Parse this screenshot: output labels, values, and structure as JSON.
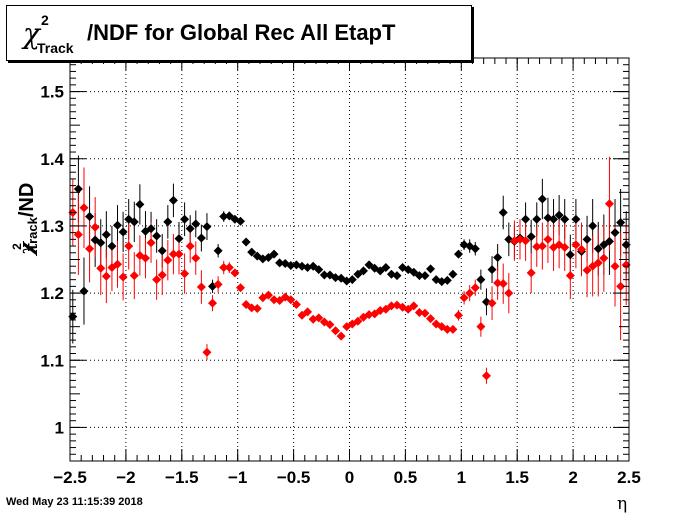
{
  "header": {
    "title_sup": "2",
    "title_sub": "Track",
    "title_main": "/NDF for Global Rec All EtapT",
    "chi_symbol": "χ"
  },
  "axes_text": {
    "ylabel_sup": "2",
    "ylabel_sub": "Track",
    "ylabel_rest": "/ND",
    "xlabel": "η"
  },
  "footer": {
    "timestamp": "Wed May 23 11:15:39 2018"
  },
  "chart_data": {
    "type": "scatter",
    "title": "χ2 Track /NDF for Global Rec All EtapT",
    "xlabel": "η",
    "ylabel": "χ2 Track /ND",
    "xlim": [
      -2.5,
      2.5
    ],
    "ylim": [
      0.95,
      1.55
    ],
    "x_ticks": [
      -2.5,
      -2,
      -1.5,
      -1,
      -0.5,
      0,
      0.5,
      1,
      1.5,
      2,
      2.5
    ],
    "x_tick_labels": [
      "−2.5",
      "−2",
      "−1.5",
      "−1",
      "−0.5",
      "0",
      "0.5",
      "1",
      "1.5",
      "2",
      "2.5"
    ],
    "y_ticks": [
      1,
      1.1,
      1.2,
      1.3,
      1.4,
      1.5
    ],
    "y_tick_labels": [
      "1",
      "1.1",
      "1.2",
      "1.3",
      "1.4",
      "1.5"
    ],
    "grid": true,
    "series": [
      {
        "color": "#000000",
        "x": [
          -2.475,
          -2.425,
          -2.375,
          -2.325,
          -2.275,
          -2.225,
          -2.175,
          -2.125,
          -2.075,
          -2.025,
          -1.975,
          -1.925,
          -1.875,
          -1.825,
          -1.775,
          -1.725,
          -1.675,
          -1.625,
          -1.575,
          -1.525,
          -1.475,
          -1.425,
          -1.375,
          -1.325,
          -1.275,
          -1.225,
          -1.175,
          -1.125,
          -1.075,
          -1.025,
          -0.975,
          -0.925,
          -0.875,
          -0.825,
          -0.775,
          -0.725,
          -0.675,
          -0.625,
          -0.575,
          -0.525,
          -0.475,
          -0.425,
          -0.375,
          -0.325,
          -0.275,
          -0.225,
          -0.175,
          -0.125,
          -0.075,
          -0.025,
          0.025,
          0.075,
          0.125,
          0.175,
          0.225,
          0.275,
          0.325,
          0.375,
          0.425,
          0.475,
          0.525,
          0.575,
          0.625,
          0.675,
          0.725,
          0.775,
          0.825,
          0.875,
          0.925,
          0.975,
          1.025,
          1.075,
          1.125,
          1.175,
          1.225,
          1.275,
          1.325,
          1.375,
          1.425,
          1.475,
          1.525,
          1.575,
          1.625,
          1.675,
          1.725,
          1.775,
          1.825,
          1.875,
          1.925,
          1.975,
          2.025,
          2.075,
          2.125,
          2.175,
          2.225,
          2.275,
          2.325,
          2.375,
          2.425,
          2.475
        ],
        "y": [
          1.165,
          1.355,
          1.203,
          1.314,
          1.279,
          1.275,
          1.287,
          1.27,
          1.301,
          1.291,
          1.31,
          1.306,
          1.332,
          1.292,
          1.296,
          1.285,
          1.263,
          1.306,
          1.338,
          1.281,
          1.31,
          1.296,
          1.303,
          1.282,
          1.299,
          1.21,
          1.263,
          1.314,
          1.315,
          1.31,
          1.307,
          1.276,
          1.261,
          1.255,
          1.251,
          1.253,
          1.258,
          1.245,
          1.244,
          1.241,
          1.242,
          1.24,
          1.238,
          1.24,
          1.235,
          1.227,
          1.227,
          1.223,
          1.222,
          1.218,
          1.22,
          1.228,
          1.233,
          1.242,
          1.237,
          1.233,
          1.238,
          1.228,
          1.226,
          1.238,
          1.235,
          1.231,
          1.226,
          1.226,
          1.236,
          1.22,
          1.217,
          1.219,
          1.228,
          1.258,
          1.272,
          1.27,
          1.266,
          1.22,
          1.187,
          1.235,
          1.253,
          1.32,
          1.28,
          1.277,
          1.282,
          1.31,
          1.284,
          1.31,
          1.34,
          1.312,
          1.31,
          1.316,
          1.31,
          1.257,
          1.31,
          1.262,
          1.28,
          1.3,
          1.266,
          1.272,
          1.277,
          1.29,
          1.305,
          1.272
        ],
        "err": [
          0.04,
          0.05,
          0.05,
          0.045,
          0.04,
          0.035,
          0.035,
          0.03,
          0.03,
          0.03,
          0.03,
          0.03,
          0.03,
          0.03,
          0.025,
          0.025,
          0.025,
          0.025,
          0.025,
          0.025,
          0.025,
          0.02,
          0.02,
          0.02,
          0.02,
          0.01,
          0.01,
          0.008,
          0.006,
          0.005,
          0.005,
          0.004,
          0.004,
          0.004,
          0.004,
          0.003,
          0.003,
          0.003,
          0.003,
          0.003,
          0.003,
          0.003,
          0.003,
          0.003,
          0.003,
          0.003,
          0.003,
          0.003,
          0.003,
          0.003,
          0.003,
          0.003,
          0.003,
          0.003,
          0.003,
          0.003,
          0.003,
          0.003,
          0.003,
          0.003,
          0.003,
          0.003,
          0.003,
          0.003,
          0.004,
          0.004,
          0.004,
          0.005,
          0.005,
          0.006,
          0.008,
          0.01,
          0.01,
          0.015,
          0.02,
          0.02,
          0.02,
          0.025,
          0.025,
          0.025,
          0.025,
          0.025,
          0.025,
          0.025,
          0.03,
          0.03,
          0.03,
          0.03,
          0.03,
          0.03,
          0.03,
          0.035,
          0.035,
          0.04,
          0.04,
          0.045,
          0.05,
          0.05,
          0.05,
          0.05
        ]
      },
      {
        "color": "#ff0000",
        "x": [
          -2.475,
          -2.425,
          -2.375,
          -2.325,
          -2.275,
          -2.225,
          -2.175,
          -2.125,
          -2.075,
          -2.025,
          -1.975,
          -1.925,
          -1.875,
          -1.825,
          -1.775,
          -1.725,
          -1.675,
          -1.625,
          -1.575,
          -1.525,
          -1.475,
          -1.425,
          -1.375,
          -1.325,
          -1.275,
          -1.225,
          -1.175,
          -1.125,
          -1.075,
          -1.025,
          -0.975,
          -0.925,
          -0.875,
          -0.825,
          -0.775,
          -0.725,
          -0.675,
          -0.625,
          -0.575,
          -0.525,
          -0.475,
          -0.425,
          -0.375,
          -0.325,
          -0.275,
          -0.225,
          -0.175,
          -0.125,
          -0.075,
          -0.025,
          0.025,
          0.075,
          0.125,
          0.175,
          0.225,
          0.275,
          0.325,
          0.375,
          0.425,
          0.475,
          0.525,
          0.575,
          0.625,
          0.675,
          0.725,
          0.775,
          0.825,
          0.875,
          0.925,
          0.975,
          1.025,
          1.075,
          1.125,
          1.175,
          1.225,
          1.275,
          1.325,
          1.375,
          1.425,
          1.475,
          1.525,
          1.575,
          1.625,
          1.675,
          1.725,
          1.775,
          1.825,
          1.875,
          1.925,
          1.975,
          2.025,
          2.075,
          2.125,
          2.175,
          2.225,
          2.275,
          2.325,
          2.375,
          2.425,
          2.475
        ],
        "y": [
          1.32,
          1.287,
          1.327,
          1.266,
          1.298,
          1.237,
          1.225,
          1.238,
          1.243,
          1.224,
          1.27,
          1.226,
          1.256,
          1.252,
          1.275,
          1.22,
          1.227,
          1.249,
          1.258,
          1.258,
          1.229,
          1.27,
          1.252,
          1.209,
          1.112,
          1.185,
          1.213,
          1.238,
          1.238,
          1.23,
          1.208,
          1.183,
          1.178,
          1.177,
          1.193,
          1.197,
          1.19,
          1.189,
          1.194,
          1.19,
          1.183,
          1.167,
          1.172,
          1.161,
          1.163,
          1.157,
          1.153,
          1.144,
          1.136,
          1.15,
          1.154,
          1.158,
          1.164,
          1.168,
          1.169,
          1.174,
          1.176,
          1.181,
          1.182,
          1.179,
          1.176,
          1.181,
          1.171,
          1.17,
          1.162,
          1.154,
          1.15,
          1.146,
          1.146,
          1.167,
          1.193,
          1.2,
          1.208,
          1.15,
          1.077,
          1.185,
          1.215,
          1.214,
          1.2,
          1.278,
          1.28,
          1.278,
          1.23,
          1.269,
          1.27,
          1.28,
          1.268,
          1.272,
          1.268,
          1.226,
          1.272,
          1.265,
          1.234,
          1.24,
          1.245,
          1.252,
          1.333,
          1.24,
          1.21,
          1.242
        ],
        "err": [
          0.05,
          0.06,
          0.06,
          0.05,
          0.045,
          0.04,
          0.04,
          0.035,
          0.035,
          0.035,
          0.035,
          0.035,
          0.03,
          0.03,
          0.03,
          0.03,
          0.03,
          0.03,
          0.03,
          0.03,
          0.03,
          0.025,
          0.025,
          0.025,
          0.012,
          0.012,
          0.012,
          0.01,
          0.008,
          0.006,
          0.006,
          0.005,
          0.005,
          0.005,
          0.005,
          0.004,
          0.004,
          0.004,
          0.004,
          0.004,
          0.004,
          0.004,
          0.004,
          0.004,
          0.004,
          0.004,
          0.004,
          0.004,
          0.004,
          0.004,
          0.004,
          0.004,
          0.004,
          0.004,
          0.004,
          0.004,
          0.004,
          0.004,
          0.004,
          0.004,
          0.004,
          0.004,
          0.004,
          0.004,
          0.005,
          0.005,
          0.005,
          0.006,
          0.006,
          0.008,
          0.01,
          0.012,
          0.012,
          0.015,
          0.012,
          0.025,
          0.025,
          0.03,
          0.03,
          0.03,
          0.03,
          0.03,
          0.03,
          0.03,
          0.035,
          0.035,
          0.035,
          0.035,
          0.035,
          0.035,
          0.035,
          0.04,
          0.04,
          0.045,
          0.05,
          0.05,
          0.07,
          0.06,
          0.08,
          0.06
        ]
      }
    ]
  }
}
